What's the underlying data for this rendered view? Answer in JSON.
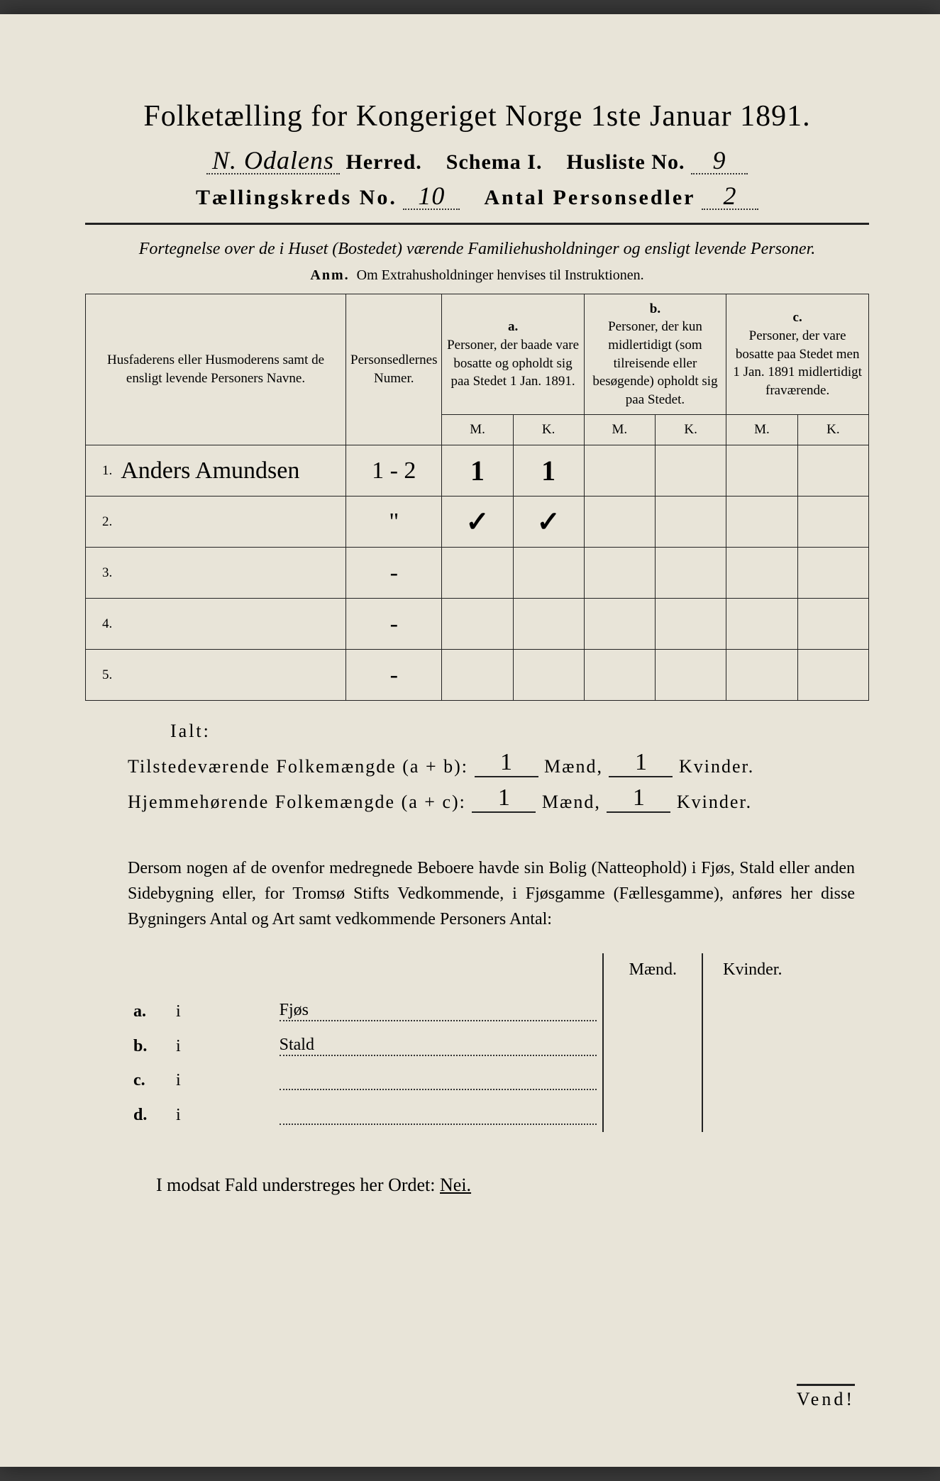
{
  "title": "Folketælling for Kongeriget Norge 1ste Januar 1891.",
  "herred_value": "N. Odalens",
  "herred_label": "Herred.",
  "schema_label": "Schema I.",
  "husliste_label": "Husliste No.",
  "husliste_value": "9",
  "kreds_label": "Tællingskreds No.",
  "kreds_value": "10",
  "antal_label": "Antal Personsedler",
  "antal_value": "2",
  "intro": "Fortegnelse over de i Huset (Bostedet) værende Familiehusholdninger og ensligt levende Personer.",
  "anm_label": "Anm.",
  "anm_text": "Om Extrahusholdninger henvises til Instruktionen.",
  "table": {
    "col1": "Husfaderens eller Husmoderens samt de ensligt levende Personers Navne.",
    "col2": "Personsedlernes Numer.",
    "col_a_label": "a.",
    "col_a": "Personer, der baade vare bosatte og opholdt sig paa Stedet 1 Jan. 1891.",
    "col_b_label": "b.",
    "col_b": "Personer, der kun midlertidigt (som tilreisende eller besøgende) opholdt sig paa Stedet.",
    "col_c_label": "c.",
    "col_c": "Personer, der vare bosatte paa Stedet men 1 Jan. 1891 midlertidigt fraværende.",
    "m": "M.",
    "k": "K.",
    "rows": [
      {
        "n": "1.",
        "name": "Anders Amundsen",
        "num": "1 - 2",
        "a_m": "1",
        "a_k": "1",
        "b_m": "",
        "b_k": "",
        "c_m": "",
        "c_k": ""
      },
      {
        "n": "2.",
        "name": "",
        "num": "\"",
        "a_m": "✓",
        "a_k": "✓",
        "b_m": "",
        "b_k": "",
        "c_m": "",
        "c_k": ""
      },
      {
        "n": "3.",
        "name": "",
        "num": "-",
        "a_m": "",
        "a_k": "",
        "b_m": "",
        "b_k": "",
        "c_m": "",
        "c_k": ""
      },
      {
        "n": "4.",
        "name": "",
        "num": "-",
        "a_m": "",
        "a_k": "",
        "b_m": "",
        "b_k": "",
        "c_m": "",
        "c_k": ""
      },
      {
        "n": "5.",
        "name": "",
        "num": "-",
        "a_m": "",
        "a_k": "",
        "b_m": "",
        "b_k": "",
        "c_m": "",
        "c_k": ""
      }
    ]
  },
  "ialt": "Ialt:",
  "sum1_label": "Tilstedeværende Folkemængde (a + b):",
  "sum1_m": "1",
  "sum1_k": "1",
  "sum2_label": "Hjemmehørende Folkemængde (a + c):",
  "sum2_m": "1",
  "sum2_k": "1",
  "maend": "Mænd,",
  "kvinder": "Kvinder.",
  "para": "Dersom nogen af de ovenfor medregnede Beboere havde sin Bolig (Natteophold) i Fjøs, Stald eller anden Sidebygning eller, for Tromsø Stifts Vedkommende, i Fjøsgamme (Fællesgamme), anføres her disse Bygningers Antal og Art samt vedkommende Personers Antal:",
  "bldg": {
    "m_header": "Mænd.",
    "k_header": "Kvinder.",
    "rows": [
      {
        "lab": "a.",
        "i": "i",
        "name": "Fjøs"
      },
      {
        "lab": "b.",
        "i": "i",
        "name": "Stald"
      },
      {
        "lab": "c.",
        "i": "i",
        "name": ""
      },
      {
        "lab": "d.",
        "i": "i",
        "name": ""
      }
    ]
  },
  "nei_text": "I modsat Fald understreges her Ordet:",
  "nei_word": "Nei.",
  "vend": "Vend!"
}
